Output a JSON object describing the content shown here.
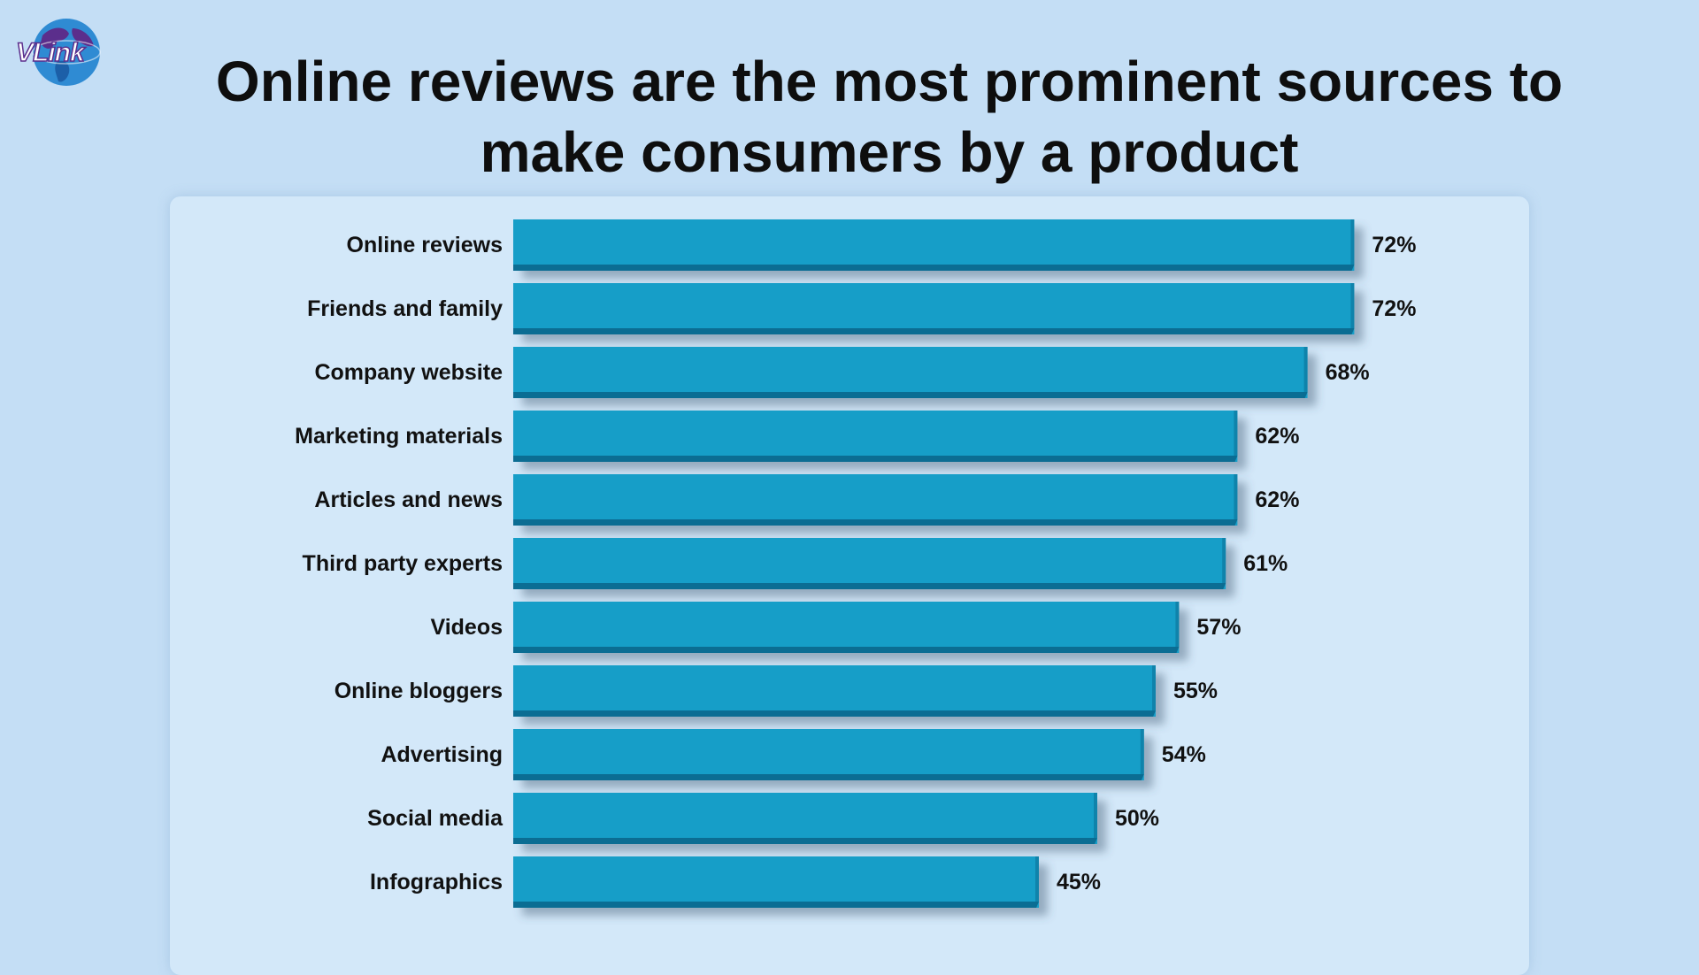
{
  "logo": {
    "text": "VLink",
    "colors": {
      "globe": "#2f8bd3",
      "land": "#5b2e8c",
      "text_stroke": "#5b2e8c"
    }
  },
  "title": "Online reviews are the most prominent sources to make consumers by a product",
  "colors": {
    "background": "#c4def5",
    "panel": "#d3e8f9",
    "bar": "#189ec8",
    "bar_edge": "#0b6d93"
  },
  "chart_data": {
    "type": "bar",
    "orientation": "horizontal",
    "title": "Online reviews are the most prominent sources to make consumers by a product",
    "xlabel": "",
    "ylabel": "",
    "grid": false,
    "categories": [
      "Online reviews",
      "Friends and family",
      "Company website",
      "Marketing materials",
      "Articles and news",
      "Third party experts",
      "Videos",
      "Online bloggers",
      "Advertising",
      "Social media",
      "Infographics"
    ],
    "values": [
      72,
      72,
      68,
      62,
      62,
      61,
      57,
      55,
      54,
      50,
      45
    ],
    "value_labels": [
      "72%",
      "72%",
      "68%",
      "62%",
      "62%",
      "61%",
      "57%",
      "55%",
      "54%",
      "50%",
      "45%"
    ],
    "unit": "%"
  }
}
